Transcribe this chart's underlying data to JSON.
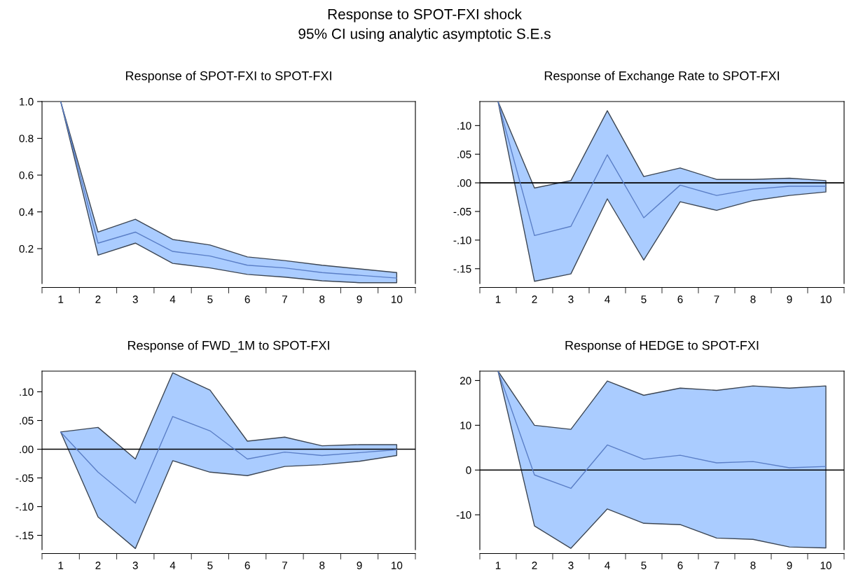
{
  "chart_data": [
    {
      "type": "line",
      "title": "Response of SPOT-FXI to SPOT-FXI",
      "annotations": [
        "Response to SPOT-FXI shock",
        "95% CI using analytic asymptotic S.E.s"
      ],
      "categories": [
        "1",
        "2",
        "3",
        "4",
        "5",
        "6",
        "7",
        "8",
        "9",
        "10"
      ],
      "series": [
        {
          "color": "#5b7fc7",
          "values": [
            1.0,
            0.23,
            0.29,
            0.185,
            0.16,
            0.11,
            0.095,
            0.07,
            0.055,
            0.04
          ],
          "upper": [
            1.0,
            0.29,
            0.36,
            0.25,
            0.22,
            0.155,
            0.135,
            0.11,
            0.09,
            0.07
          ],
          "lower": [
            1.0,
            0.165,
            0.23,
            0.12,
            0.095,
            0.06,
            0.045,
            0.025,
            0.015,
            0.015
          ]
        }
      ],
      "ylim": [
        0.01,
        1.0
      ],
      "yticks": [
        0.2,
        0.4,
        0.6,
        0.8,
        {
          "value": 1.0,
          "label": "1.0"
        }
      ],
      "grid": false,
      "legend": false
    },
    {
      "type": "line",
      "title": "Response of Exchange Rate to SPOT-FXI",
      "categories": [
        "1",
        "2",
        "3",
        "4",
        "5",
        "6",
        "7",
        "8",
        "9",
        "10"
      ],
      "series": [
        {
          "color": "#5b7fc7",
          "values": [
            0.142,
            -0.092,
            -0.076,
            0.049,
            -0.061,
            -0.004,
            -0.022,
            -0.011,
            -0.006,
            -0.006
          ],
          "upper": [
            0.142,
            -0.009,
            0.004,
            0.126,
            0.011,
            0.026,
            0.006,
            0.006,
            0.008,
            0.004
          ],
          "lower": [
            0.142,
            -0.172,
            -0.159,
            -0.028,
            -0.135,
            -0.033,
            -0.048,
            -0.031,
            -0.022,
            -0.016
          ]
        }
      ],
      "ylim": [
        -0.176,
        0.142
      ],
      "yticks": [
        {
          "value": -0.15,
          "label": "-.15"
        },
        {
          "value": -0.1,
          "label": "-.10"
        },
        {
          "value": -0.05,
          "label": "-.05"
        },
        {
          "value": 0,
          "label": ".00"
        },
        {
          "value": 0.05,
          "label": ".05"
        },
        {
          "value": 0.1,
          "label": ".10"
        }
      ],
      "ref_lines": [
        {
          "axis": "y",
          "value": 0,
          "color": "#000000"
        }
      ],
      "grid": false,
      "legend": false
    },
    {
      "type": "line",
      "title": "Response of FWD_1M to SPOT-FXI",
      "categories": [
        "1",
        "2",
        "3",
        "4",
        "5",
        "6",
        "7",
        "8",
        "9",
        "10"
      ],
      "series": [
        {
          "color": "#5b7fc7",
          "values": [
            0.03,
            -0.04,
            -0.094,
            0.057,
            0.032,
            -0.017,
            -0.005,
            -0.011,
            -0.006,
            -0.001
          ],
          "upper": [
            0.03,
            0.038,
            -0.017,
            0.133,
            0.103,
            0.014,
            0.021,
            0.006,
            0.008,
            0.008
          ],
          "lower": [
            0.03,
            -0.118,
            -0.173,
            -0.02,
            -0.04,
            -0.046,
            -0.03,
            -0.027,
            -0.021,
            -0.011
          ]
        }
      ],
      "ylim": [
        -0.175,
        0.136
      ],
      "yticks": [
        {
          "value": -0.15,
          "label": "-.15"
        },
        {
          "value": -0.1,
          "label": "-.10"
        },
        {
          "value": -0.05,
          "label": "-.05"
        },
        {
          "value": 0,
          "label": ".00"
        },
        {
          "value": 0.05,
          "label": ".05"
        },
        {
          "value": 0.1,
          "label": ".10"
        }
      ],
      "ref_lines": [
        {
          "axis": "y",
          "value": 0,
          "color": "#000000"
        }
      ],
      "grid": false,
      "legend": false
    },
    {
      "type": "line",
      "title": "Response of HEDGE to SPOT-FXI",
      "categories": [
        "1",
        "2",
        "3",
        "4",
        "5",
        "6",
        "7",
        "8",
        "9",
        "10"
      ],
      "series": [
        {
          "color": "#5b7fc7",
          "values": [
            22.1,
            -1.1,
            -4.1,
            5.6,
            2.4,
            3.3,
            1.6,
            1.9,
            0.5,
            0.8
          ],
          "upper": [
            22.1,
            10,
            9.1,
            19.9,
            16.7,
            18.3,
            17.8,
            18.8,
            18.3,
            18.8
          ],
          "lower": [
            22.1,
            -12.5,
            -17.5,
            -8.7,
            -11.9,
            -12.2,
            -15.2,
            -15.5,
            -17.2,
            -17.4
          ]
        }
      ],
      "ylim": [
        -17.8,
        22.1
      ],
      "yticks": [
        -10,
        0,
        10,
        20
      ],
      "ref_lines": [
        {
          "axis": "y",
          "value": 0,
          "color": "#000000"
        }
      ],
      "grid": false,
      "legend": false
    }
  ]
}
